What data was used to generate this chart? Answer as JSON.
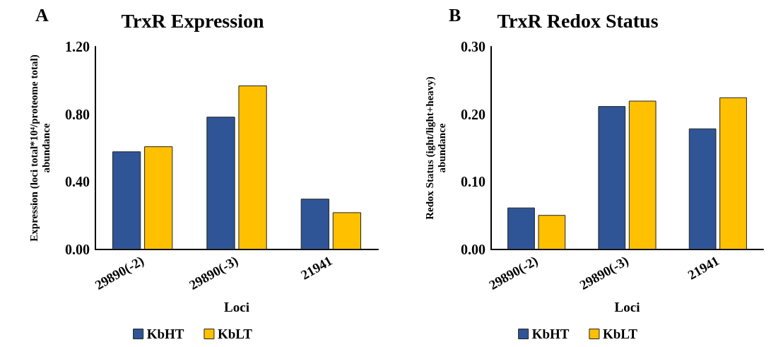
{
  "chart_data": [
    {
      "type": "bar",
      "title": "TrxR Expression",
      "annotations": [
        "A"
      ],
      "xlabel": "Loci",
      "ylabel": "Expression (loci total*10⁴/proteome total)\nabundance",
      "categories": [
        "29890(-2)",
        "29890(-3)",
        "21941"
      ],
      "series": [
        {
          "name": "KbHT",
          "color": "#2f5597",
          "values": [
            0.58,
            0.785,
            0.3
          ]
        },
        {
          "name": "KbLT",
          "color": "#ffc000",
          "values": [
            0.61,
            0.97,
            0.22
          ]
        }
      ],
      "ylim": [
        0,
        1.2
      ],
      "yticks": [
        {
          "value": 0,
          "label": "0.00"
        },
        {
          "value": 0.4,
          "label": "0.40"
        },
        {
          "value": 0.8,
          "label": "0.80"
        },
        {
          "value": 1.2,
          "label": "1.20"
        }
      ],
      "grid": false,
      "legend": "bottom"
    },
    {
      "type": "bar",
      "title": "TrxR Redox Status",
      "annotations": [
        "B"
      ],
      "xlabel": "Loci",
      "ylabel": "Redox Status (ight/light+heavy)\nabundance",
      "categories": [
        "29890(-2)",
        "29890(-3)",
        "21941"
      ],
      "series": [
        {
          "name": "KbHT",
          "color": "#2f5597",
          "values": [
            0.062,
            0.212,
            0.179
          ]
        },
        {
          "name": "KbLT",
          "color": "#ffc000",
          "values": [
            0.051,
            0.22,
            0.225
          ]
        }
      ],
      "ylim": [
        0,
        0.3
      ],
      "yticks": [
        {
          "value": 0,
          "label": "0.00"
        },
        {
          "value": 0.1,
          "label": "0.10"
        },
        {
          "value": 0.2,
          "label": "0.20"
        },
        {
          "value": 0.3,
          "label": "0.30"
        }
      ],
      "grid": false,
      "legend": "bottom"
    }
  ]
}
